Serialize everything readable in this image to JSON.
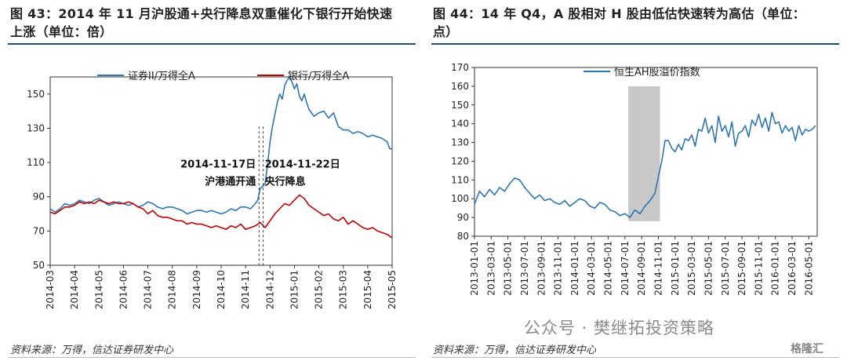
{
  "left": {
    "title_line1": "图 43：2014 年 11 月沪股通+央行降息双重催化下银行开始快速",
    "title_line2": "上涨（单位：倍）",
    "source": "资料来源：万得，信达证券研发中心"
  },
  "right": {
    "title_line1": "图 44：14 年 Q4，A 股相对 H 股由低估快速转为高估（单位：",
    "title_line2": "点）",
    "source": "资料来源：万得，信达证券研发中心"
  },
  "watermark": "公众号 · 樊继拓投资策略",
  "logo": "格隆汇",
  "colors": {
    "blue": "#2e75b6",
    "red": "#c00000",
    "shade": "#c8c8c8",
    "rule": "#1f4e79"
  },
  "chart_data": [
    {
      "type": "line",
      "ylim": [
        50,
        160
      ],
      "yticks": [
        50,
        70,
        90,
        110,
        130,
        150
      ],
      "x_tick_labels": [
        "2014-03",
        "2014-04",
        "2014-05",
        "2014-06",
        "2014-07",
        "2014-08",
        "2014-09",
        "2014-10",
        "2014-11",
        "2014-12",
        "2015-01",
        "2015-02",
        "2015-03",
        "2015-04",
        "2015-05"
      ],
      "series": [
        {
          "name": "证券II/万得全A",
          "color": "#2e75b6",
          "x": [
            0,
            0.2,
            0.4,
            0.6,
            0.8,
            1.0,
            1.2,
            1.4,
            1.6,
            1.8,
            2.0,
            2.2,
            2.4,
            2.6,
            2.8,
            3.0,
            3.2,
            3.4,
            3.6,
            3.8,
            4.0,
            4.2,
            4.4,
            4.6,
            4.8,
            5.0,
            5.2,
            5.4,
            5.6,
            5.8,
            6.0,
            6.2,
            6.4,
            6.6,
            6.8,
            7.0,
            7.2,
            7.4,
            7.6,
            7.8,
            8.0,
            8.2,
            8.4,
            8.5,
            8.6,
            8.7,
            8.8,
            8.9,
            9.0,
            9.1,
            9.2,
            9.3,
            9.4,
            9.5,
            9.6,
            9.7,
            9.8,
            9.9,
            10.0,
            10.1,
            10.2,
            10.3,
            10.4,
            10.5,
            10.6,
            10.8,
            11.0,
            11.2,
            11.4,
            11.6,
            11.8,
            12.0,
            12.2,
            12.4,
            12.6,
            12.8,
            13.0,
            13.2,
            13.4,
            13.6,
            13.8,
            13.9,
            14.0
          ],
          "y": [
            83,
            81,
            83,
            86,
            85,
            86,
            88,
            87,
            86,
            88,
            89,
            87,
            85,
            86,
            87,
            86,
            85,
            86,
            84,
            85,
            87,
            86,
            84,
            83,
            84,
            84,
            83,
            82,
            80,
            81,
            82,
            82,
            81,
            82,
            81,
            80,
            81,
            83,
            82,
            84,
            84,
            83,
            86,
            88,
            95,
            96,
            98,
            109,
            122,
            131,
            138,
            145,
            150,
            147,
            155,
            158,
            160,
            157,
            153,
            156,
            149,
            146,
            150,
            145,
            141,
            137,
            139,
            140,
            136,
            139,
            131,
            129,
            129,
            127,
            128,
            127,
            125,
            126,
            125,
            124,
            122,
            118,
            118
          ]
        },
        {
          "name": "银行/万得全A",
          "color": "#c00000",
          "x": [
            0,
            0.2,
            0.4,
            0.6,
            0.8,
            1.0,
            1.2,
            1.4,
            1.6,
            1.8,
            2.0,
            2.2,
            2.4,
            2.6,
            2.8,
            3.0,
            3.2,
            3.4,
            3.6,
            3.8,
            4.0,
            4.2,
            4.4,
            4.6,
            4.8,
            5.0,
            5.2,
            5.4,
            5.6,
            5.8,
            6.0,
            6.2,
            6.4,
            6.6,
            6.8,
            7.0,
            7.2,
            7.4,
            7.6,
            7.8,
            8.0,
            8.2,
            8.4,
            8.6,
            8.8,
            9.0,
            9.2,
            9.4,
            9.6,
            9.8,
            10.0,
            10.2,
            10.4,
            10.6,
            10.8,
            11.0,
            11.2,
            11.4,
            11.6,
            11.8,
            12.0,
            12.2,
            12.4,
            12.6,
            12.8,
            13.0,
            13.2,
            13.4,
            13.6,
            13.8,
            14.0
          ],
          "y": [
            81,
            80,
            82,
            84,
            84,
            85,
            87,
            86,
            87,
            86,
            88,
            87,
            86,
            87,
            86,
            86,
            87,
            86,
            84,
            83,
            80,
            82,
            79,
            78,
            78,
            77,
            76,
            76,
            74,
            75,
            74,
            74,
            73,
            72,
            73,
            72,
            71,
            73,
            72,
            74,
            71,
            72,
            73,
            75,
            72,
            76,
            80,
            83,
            86,
            85,
            88,
            91,
            89,
            85,
            83,
            81,
            79,
            80,
            77,
            76,
            78,
            74,
            76,
            74,
            72,
            71,
            72,
            70,
            69,
            68,
            66
          ]
        }
      ],
      "annotations": [
        {
          "line1": "2014-11-17日",
          "line2": "沪港通开通",
          "x": 8.55
        },
        {
          "line1": "2014-11-22日",
          "line2": "央行降息",
          "x": 8.72
        }
      ]
    },
    {
      "type": "line",
      "ylim": [
        80,
        170
      ],
      "yticks": [
        80,
        90,
        100,
        110,
        120,
        130,
        140,
        150,
        160,
        170
      ],
      "x_tick_labels": [
        "2013-01-01",
        "2013-03-01",
        "2013-05-01",
        "2013-07-01",
        "2013-09-01",
        "2013-11-01",
        "2014-01-01",
        "2014-03-01",
        "2014-05-01",
        "2014-07-01",
        "2014-09-01",
        "2014-11-01",
        "2015-01-01",
        "2015-03-01",
        "2015-05-01",
        "2015-07-01",
        "2015-09-01",
        "2015-11-01",
        "2016-01-01",
        "2016-03-01",
        "2016-05-01"
      ],
      "shaded_region": [
        9.2,
        11.1
      ],
      "series": [
        {
          "name": "恒生AH股溢价指数",
          "color": "#2e75b6",
          "x": [
            0,
            0.3,
            0.6,
            0.9,
            1.2,
            1.5,
            1.8,
            2.1,
            2.4,
            2.7,
            3.0,
            3.3,
            3.6,
            3.9,
            4.2,
            4.5,
            4.8,
            5.1,
            5.4,
            5.7,
            6.0,
            6.3,
            6.6,
            6.9,
            7.2,
            7.5,
            7.8,
            8.1,
            8.4,
            8.7,
            9.0,
            9.3,
            9.6,
            9.9,
            10.2,
            10.5,
            10.8,
            11.0,
            11.2,
            11.4,
            11.6,
            11.8,
            12.0,
            12.2,
            12.4,
            12.6,
            12.8,
            13.0,
            13.2,
            13.4,
            13.6,
            13.8,
            14.0,
            14.2,
            14.4,
            14.6,
            14.8,
            15.0,
            15.2,
            15.4,
            15.6,
            15.8,
            16.0,
            16.2,
            16.4,
            16.6,
            16.8,
            17.0,
            17.2,
            17.4,
            17.6,
            17.8,
            18.0,
            18.2,
            18.4,
            18.6,
            18.8,
            19.0,
            19.2,
            19.4,
            19.6,
            19.8,
            20.0,
            20.2,
            20.4
          ],
          "y": [
            97,
            104,
            101,
            105,
            102,
            106,
            104,
            108,
            111,
            110,
            106,
            103,
            100,
            102,
            99,
            100,
            98,
            97,
            99,
            96,
            98,
            100,
            99,
            96,
            95,
            98,
            97,
            94,
            93,
            91,
            92,
            90,
            94,
            92,
            96,
            99,
            103,
            112,
            120,
            131,
            131,
            127,
            125,
            129,
            126,
            132,
            131,
            134,
            128,
            137,
            136,
            143,
            135,
            139,
            130,
            144,
            136,
            139,
            133,
            141,
            128,
            135,
            136,
            139,
            133,
            142,
            139,
            145,
            138,
            143,
            136,
            146,
            140,
            141,
            135,
            139,
            136,
            138,
            131,
            139,
            134,
            137,
            136,
            137,
            139
          ]
        }
      ]
    }
  ]
}
